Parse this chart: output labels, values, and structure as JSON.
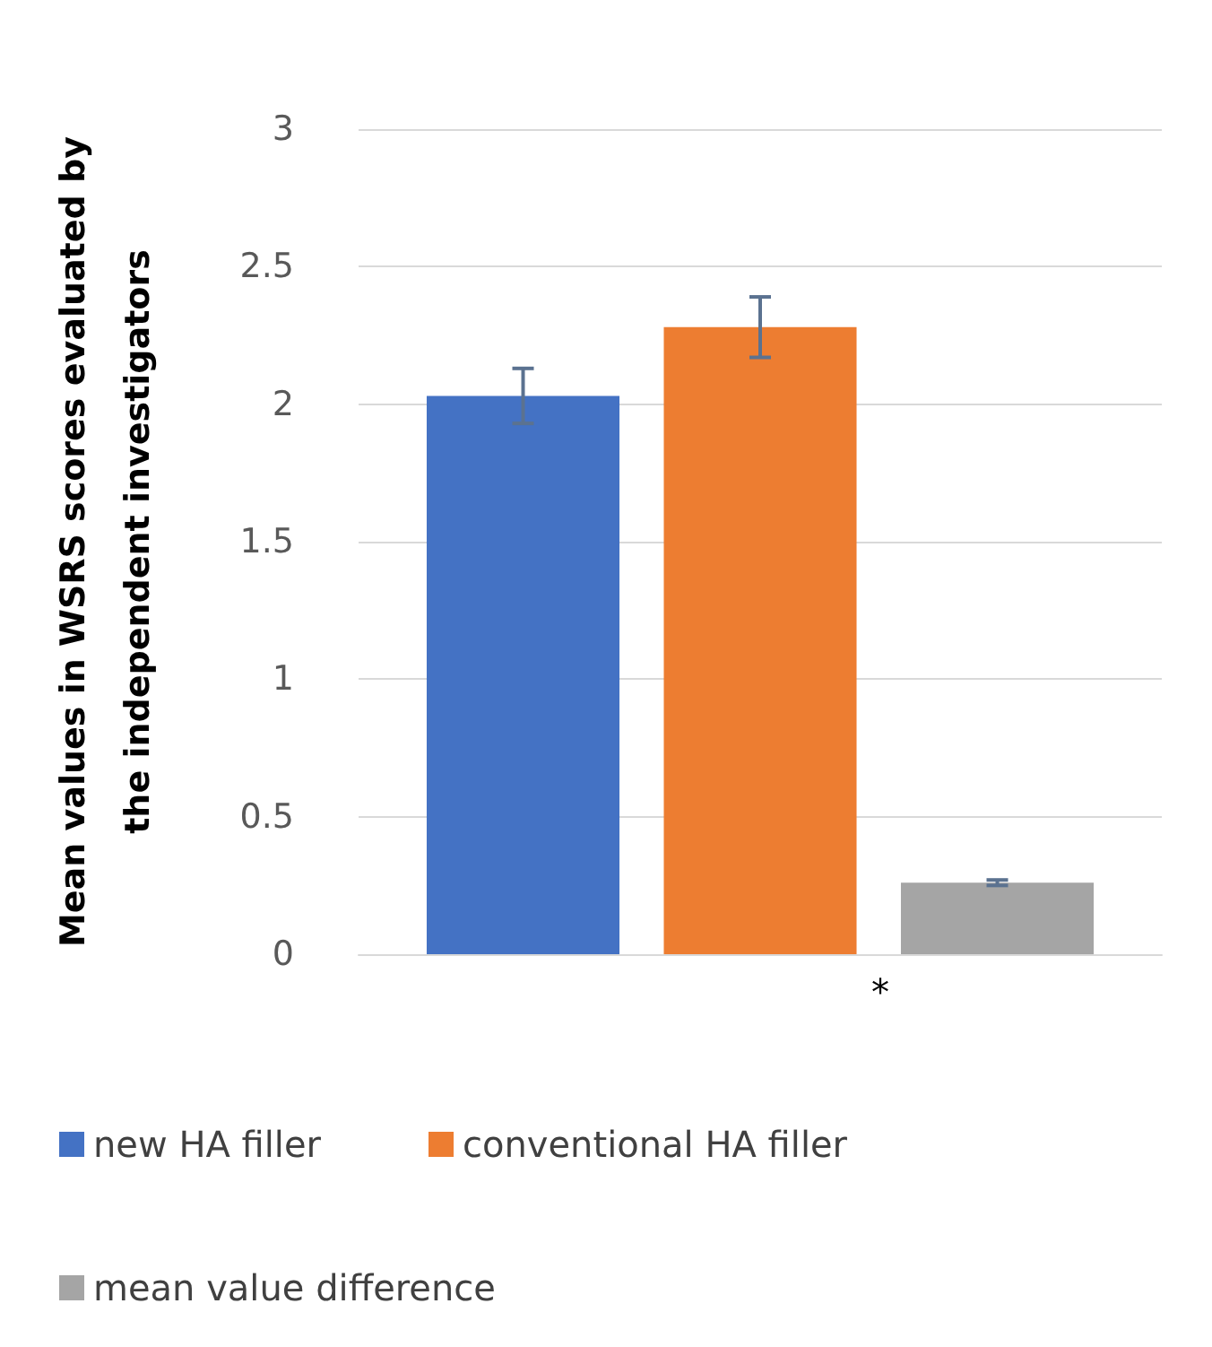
{
  "chart_data": {
    "type": "bar",
    "ylabel": "Mean values in WSRS scores evaluated by\nthe independent investigators",
    "categories": [
      null
    ],
    "series": [
      {
        "name": "new HA filler",
        "color": "#4472c4",
        "values": [
          2.03
        ],
        "errors": [
          0.1
        ]
      },
      {
        "name": "conventional HA filler",
        "color": "#ed7d31",
        "values": [
          2.28
        ],
        "errors": [
          0.11
        ]
      },
      {
        "name": "mean value difference",
        "color": "#a5a5a5",
        "values": [
          0.26
        ],
        "errors": [
          0.01
        ]
      }
    ],
    "ylim": [
      0,
      3
    ],
    "yticks": [
      0,
      0.5,
      1,
      1.5,
      2,
      2.5,
      3
    ],
    "grid": "y",
    "legend": "bottom",
    "annotations": [
      "*"
    ]
  }
}
